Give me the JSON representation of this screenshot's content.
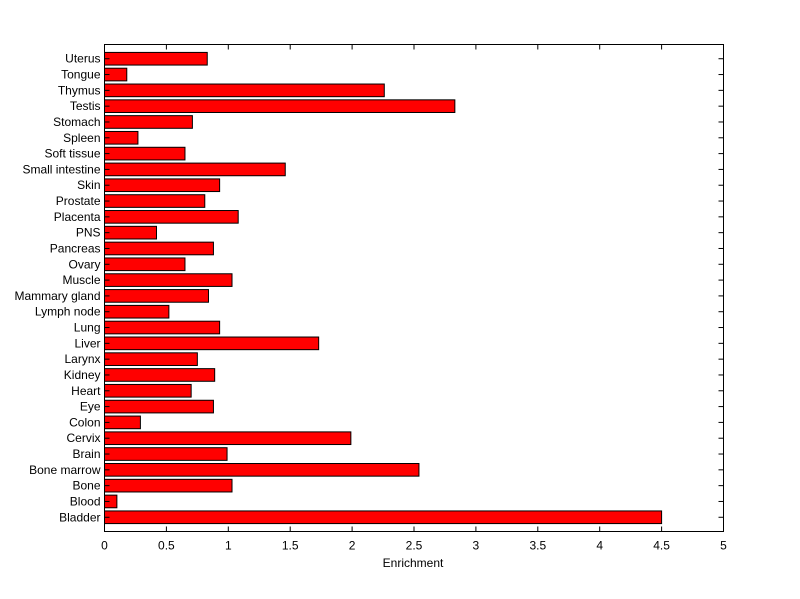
{
  "chart_data": {
    "type": "bar",
    "orientation": "horizontal",
    "categories": [
      "Bladder",
      "Blood",
      "Bone",
      "Bone marrow",
      "Brain",
      "Cervix",
      "Colon",
      "Eye",
      "Heart",
      "Kidney",
      "Larynx",
      "Liver",
      "Lung",
      "Lymph node",
      "Mammary gland",
      "Muscle",
      "Ovary",
      "Pancreas",
      "PNS",
      "Placenta",
      "Prostate",
      "Skin",
      "Small intestine",
      "Soft tissue",
      "Spleen",
      "Stomach",
      "Testis",
      "Thymus",
      "Tongue",
      "Uterus"
    ],
    "values": [
      4.5,
      0.1,
      1.03,
      2.54,
      0.99,
      1.99,
      0.29,
      0.88,
      0.7,
      0.89,
      0.75,
      1.73,
      0.93,
      0.52,
      0.84,
      1.03,
      0.65,
      0.88,
      0.42,
      1.08,
      0.81,
      0.93,
      1.46,
      0.65,
      0.27,
      0.71,
      2.83,
      2.26,
      0.18,
      0.83
    ],
    "xlabel": "Enrichment",
    "ylabel": "",
    "title": "",
    "xlim": [
      0,
      5
    ],
    "xticks": [
      "0",
      "0.5",
      "1",
      "1.5",
      "2",
      "2.5",
      "3",
      "3.5",
      "4",
      "4.5",
      "5"
    ],
    "grid": false,
    "legend": "none",
    "bar_color": "#ff0000",
    "edge_color": "#000000"
  }
}
